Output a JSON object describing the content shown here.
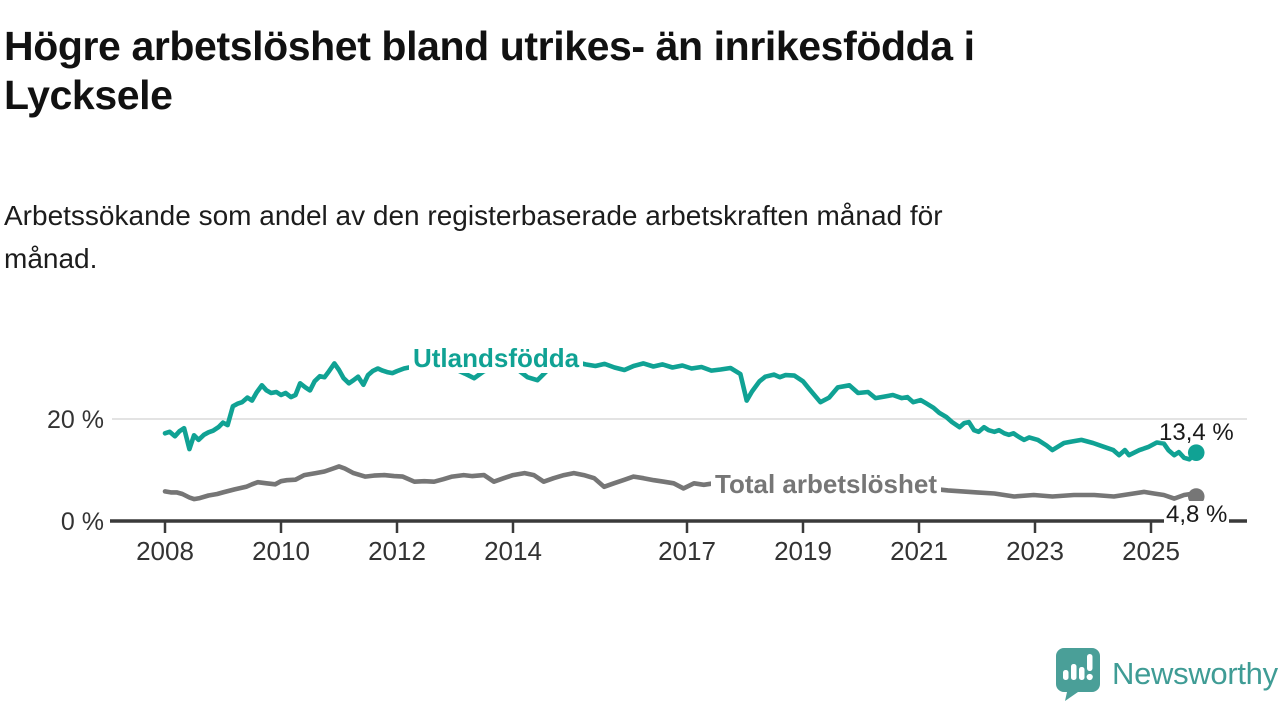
{
  "header": {
    "title_lines": [
      "Högre arbetslöshet bland utrikes- än inrikesfödda i",
      "Lycksele"
    ],
    "subtitle_lines": [
      "Arbetssökande som andel av den registerbaserade arbetskraften månad för",
      "månad."
    ]
  },
  "chart_data": {
    "type": "line",
    "unit": "%",
    "title": "Högre arbetslöshet bland utrikes- än inrikesfödda i Lycksele",
    "xlabel": "",
    "ylabel": "",
    "ylim": [
      0,
      33
    ],
    "xlim": [
      2007.1,
      2026.6
    ],
    "grid": "horizontal gridline at 20% only",
    "legend_position": "labels drawn on lines",
    "x_ticks": [
      {
        "year": 2008,
        "label": "2008"
      },
      {
        "year": 2010,
        "label": "2010"
      },
      {
        "year": 2012,
        "label": "2012"
      },
      {
        "year": 2014,
        "label": "2014"
      },
      {
        "year": 2017,
        "label": "2017"
      },
      {
        "year": 2019,
        "label": "2019"
      },
      {
        "year": 2021,
        "label": "2021"
      },
      {
        "year": 2023,
        "label": "2023"
      },
      {
        "year": 2025,
        "label": "2025"
      }
    ],
    "y_ticks": [
      {
        "value": 20,
        "label": "20 %"
      },
      {
        "value": 0,
        "label": "0 %"
      }
    ],
    "series": [
      {
        "name": "Utlandsfödda",
        "color": "#10A294",
        "end_label": "13,4 %",
        "end_value": 13.4,
        "points": [
          [
            2008.0,
            17.2
          ],
          [
            2008.08,
            17.5
          ],
          [
            2008.17,
            16.6
          ],
          [
            2008.25,
            17.6
          ],
          [
            2008.33,
            18.2
          ],
          [
            2008.42,
            14.1
          ],
          [
            2008.5,
            16.8
          ],
          [
            2008.58,
            15.9
          ],
          [
            2008.67,
            16.9
          ],
          [
            2008.75,
            17.4
          ],
          [
            2008.83,
            17.7
          ],
          [
            2008.92,
            18.4
          ],
          [
            2009.0,
            19.3
          ],
          [
            2009.08,
            18.8
          ],
          [
            2009.17,
            22.5
          ],
          [
            2009.25,
            23.0
          ],
          [
            2009.33,
            23.3
          ],
          [
            2009.42,
            24.2
          ],
          [
            2009.5,
            23.6
          ],
          [
            2009.58,
            25.2
          ],
          [
            2009.67,
            26.6
          ],
          [
            2009.75,
            25.6
          ],
          [
            2009.83,
            25.1
          ],
          [
            2009.92,
            25.3
          ],
          [
            2010.0,
            24.7
          ],
          [
            2010.08,
            25.1
          ],
          [
            2010.17,
            24.3
          ],
          [
            2010.25,
            24.7
          ],
          [
            2010.33,
            27.0
          ],
          [
            2010.42,
            26.2
          ],
          [
            2010.5,
            25.6
          ],
          [
            2010.58,
            27.4
          ],
          [
            2010.67,
            28.4
          ],
          [
            2010.75,
            28.2
          ],
          [
            2010.83,
            29.4
          ],
          [
            2010.92,
            30.9
          ],
          [
            2011.0,
            29.6
          ],
          [
            2011.08,
            28.0
          ],
          [
            2011.17,
            27.0
          ],
          [
            2011.25,
            27.6
          ],
          [
            2011.33,
            28.3
          ],
          [
            2011.42,
            26.7
          ],
          [
            2011.5,
            28.6
          ],
          [
            2011.58,
            29.4
          ],
          [
            2011.67,
            29.9
          ],
          [
            2011.75,
            29.5
          ],
          [
            2011.83,
            29.2
          ],
          [
            2011.92,
            29.0
          ],
          [
            2012.0,
            29.4
          ],
          [
            2012.12,
            29.9
          ],
          [
            2012.29,
            30.3
          ],
          [
            2012.47,
            29.9
          ],
          [
            2012.64,
            29.6
          ],
          [
            2012.81,
            30.3
          ],
          [
            2012.98,
            29.9
          ],
          [
            2013.17,
            28.9
          ],
          [
            2013.33,
            28.0
          ],
          [
            2013.5,
            29.4
          ],
          [
            2013.75,
            30.2
          ],
          [
            2014.0,
            30.4
          ],
          [
            2014.25,
            28.2
          ],
          [
            2014.42,
            27.6
          ],
          [
            2014.58,
            29.4
          ],
          [
            2014.75,
            30.3
          ],
          [
            2014.92,
            30.9
          ],
          [
            2015.08,
            31.2
          ],
          [
            2015.25,
            30.7
          ],
          [
            2015.42,
            30.4
          ],
          [
            2015.58,
            30.8
          ],
          [
            2015.75,
            30.1
          ],
          [
            2015.92,
            29.6
          ],
          [
            2016.08,
            30.4
          ],
          [
            2016.25,
            30.9
          ],
          [
            2016.42,
            30.3
          ],
          [
            2016.58,
            30.7
          ],
          [
            2016.75,
            30.1
          ],
          [
            2016.92,
            30.5
          ],
          [
            2017.08,
            29.9
          ],
          [
            2017.25,
            30.2
          ],
          [
            2017.42,
            29.5
          ],
          [
            2017.58,
            29.7
          ],
          [
            2017.75,
            30.0
          ],
          [
            2017.92,
            28.8
          ],
          [
            2018.03,
            23.6
          ],
          [
            2018.12,
            25.4
          ],
          [
            2018.25,
            27.4
          ],
          [
            2018.35,
            28.3
          ],
          [
            2018.5,
            28.7
          ],
          [
            2018.6,
            28.2
          ],
          [
            2018.7,
            28.6
          ],
          [
            2018.85,
            28.5
          ],
          [
            2019.0,
            27.4
          ],
          [
            2019.1,
            26.0
          ],
          [
            2019.3,
            23.3
          ],
          [
            2019.45,
            24.2
          ],
          [
            2019.6,
            26.2
          ],
          [
            2019.8,
            26.6
          ],
          [
            2019.95,
            25.1
          ],
          [
            2020.12,
            25.3
          ],
          [
            2020.25,
            24.1
          ],
          [
            2020.4,
            24.4
          ],
          [
            2020.55,
            24.7
          ],
          [
            2020.7,
            24.1
          ],
          [
            2020.8,
            24.3
          ],
          [
            2020.9,
            23.3
          ],
          [
            2021.03,
            23.7
          ],
          [
            2021.12,
            23.1
          ],
          [
            2021.25,
            22.2
          ],
          [
            2021.35,
            21.2
          ],
          [
            2021.47,
            20.4
          ],
          [
            2021.57,
            19.4
          ],
          [
            2021.7,
            18.4
          ],
          [
            2021.78,
            19.2
          ],
          [
            2021.86,
            19.4
          ],
          [
            2021.95,
            17.8
          ],
          [
            2022.03,
            17.5
          ],
          [
            2022.12,
            18.4
          ],
          [
            2022.2,
            17.8
          ],
          [
            2022.3,
            17.5
          ],
          [
            2022.38,
            17.8
          ],
          [
            2022.47,
            17.2
          ],
          [
            2022.55,
            16.9
          ],
          [
            2022.63,
            17.2
          ],
          [
            2022.72,
            16.5
          ],
          [
            2022.81,
            15.9
          ],
          [
            2022.9,
            16.4
          ],
          [
            2023.05,
            15.9
          ],
          [
            2023.2,
            14.8
          ],
          [
            2023.3,
            13.9
          ],
          [
            2023.5,
            15.3
          ],
          [
            2023.65,
            15.6
          ],
          [
            2023.8,
            15.9
          ],
          [
            2024.0,
            15.3
          ],
          [
            2024.2,
            14.5
          ],
          [
            2024.35,
            13.9
          ],
          [
            2024.45,
            12.9
          ],
          [
            2024.55,
            13.9
          ],
          [
            2024.62,
            12.9
          ],
          [
            2024.8,
            13.9
          ],
          [
            2024.95,
            14.5
          ],
          [
            2025.1,
            15.4
          ],
          [
            2025.22,
            15.2
          ],
          [
            2025.3,
            13.9
          ],
          [
            2025.4,
            12.9
          ],
          [
            2025.48,
            13.5
          ],
          [
            2025.57,
            12.4
          ],
          [
            2025.66,
            12.1
          ],
          [
            2025.74,
            12.9
          ],
          [
            2025.78,
            13.4
          ]
        ]
      },
      {
        "name": "Total arbetslöshet",
        "color": "#767676",
        "end_label": "4,8 %",
        "end_value": 4.8,
        "points": [
          [
            2008.0,
            5.8
          ],
          [
            2008.1,
            5.6
          ],
          [
            2008.2,
            5.6
          ],
          [
            2008.3,
            5.3
          ],
          [
            2008.42,
            4.6
          ],
          [
            2008.5,
            4.3
          ],
          [
            2008.6,
            4.5
          ],
          [
            2008.75,
            5.0
          ],
          [
            2008.9,
            5.3
          ],
          [
            2009.0,
            5.6
          ],
          [
            2009.2,
            6.2
          ],
          [
            2009.4,
            6.7
          ],
          [
            2009.5,
            7.2
          ],
          [
            2009.6,
            7.6
          ],
          [
            2009.75,
            7.4
          ],
          [
            2009.9,
            7.2
          ],
          [
            2010.0,
            7.8
          ],
          [
            2010.1,
            8.0
          ],
          [
            2010.25,
            8.1
          ],
          [
            2010.4,
            9.0
          ],
          [
            2010.6,
            9.4
          ],
          [
            2010.75,
            9.7
          ],
          [
            2010.9,
            10.3
          ],
          [
            2011.0,
            10.7
          ],
          [
            2011.1,
            10.3
          ],
          [
            2011.25,
            9.4
          ],
          [
            2011.45,
            8.7
          ],
          [
            2011.6,
            8.9
          ],
          [
            2011.78,
            9.0
          ],
          [
            2011.95,
            8.8
          ],
          [
            2012.1,
            8.7
          ],
          [
            2012.3,
            7.7
          ],
          [
            2012.47,
            7.8
          ],
          [
            2012.64,
            7.7
          ],
          [
            2012.8,
            8.2
          ],
          [
            2012.95,
            8.7
          ],
          [
            2013.15,
            9.0
          ],
          [
            2013.3,
            8.8
          ],
          [
            2013.5,
            9.0
          ],
          [
            2013.67,
            7.7
          ],
          [
            2013.84,
            8.4
          ],
          [
            2014.0,
            9.0
          ],
          [
            2014.2,
            9.4
          ],
          [
            2014.36,
            9.0
          ],
          [
            2014.53,
            7.7
          ],
          [
            2014.7,
            8.4
          ],
          [
            2014.88,
            9.0
          ],
          [
            2015.05,
            9.4
          ],
          [
            2015.22,
            9.0
          ],
          [
            2015.4,
            8.4
          ],
          [
            2015.57,
            6.7
          ],
          [
            2015.74,
            7.4
          ],
          [
            2015.9,
            8.0
          ],
          [
            2016.08,
            8.7
          ],
          [
            2016.25,
            8.4
          ],
          [
            2016.43,
            8.0
          ],
          [
            2016.6,
            7.7
          ],
          [
            2016.77,
            7.4
          ],
          [
            2016.94,
            6.4
          ],
          [
            2017.12,
            7.4
          ],
          [
            2017.29,
            7.1
          ],
          [
            2017.46,
            7.4
          ],
          [
            2017.7,
            7.2
          ],
          [
            2017.9,
            7.0
          ],
          [
            2018.1,
            6.9
          ],
          [
            2018.3,
            6.7
          ],
          [
            2018.5,
            6.9
          ],
          [
            2018.75,
            6.8
          ],
          [
            2019.0,
            6.6
          ],
          [
            2019.25,
            6.4
          ],
          [
            2019.5,
            6.5
          ],
          [
            2019.75,
            6.7
          ],
          [
            2020.0,
            6.8
          ],
          [
            2020.25,
            7.0
          ],
          [
            2020.5,
            6.9
          ],
          [
            2020.75,
            6.7
          ],
          [
            2021.0,
            6.5
          ],
          [
            2021.25,
            6.3
          ],
          [
            2021.5,
            6.0
          ],
          [
            2021.75,
            5.8
          ],
          [
            2022.0,
            5.6
          ],
          [
            2022.3,
            5.4
          ],
          [
            2022.64,
            4.8
          ],
          [
            2022.98,
            5.1
          ],
          [
            2023.3,
            4.8
          ],
          [
            2023.67,
            5.1
          ],
          [
            2024.02,
            5.1
          ],
          [
            2024.36,
            4.8
          ],
          [
            2024.7,
            5.4
          ],
          [
            2024.88,
            5.7
          ],
          [
            2025.05,
            5.4
          ],
          [
            2025.22,
            5.1
          ],
          [
            2025.4,
            4.4
          ],
          [
            2025.57,
            5.1
          ],
          [
            2025.74,
            5.4
          ],
          [
            2025.78,
            4.8
          ]
        ]
      }
    ]
  },
  "colors": {
    "accent_teal": "#10A294",
    "line_gray": "#767676",
    "axis": "#3A3A3A",
    "gridline": "#DADADA",
    "tick_label": "#333333",
    "value_label": "#1A1A1A"
  },
  "branding": {
    "logo_text": "Newsworthy",
    "logo_color": "#3F9C95",
    "logo_icon_color": "#4A9F98"
  }
}
